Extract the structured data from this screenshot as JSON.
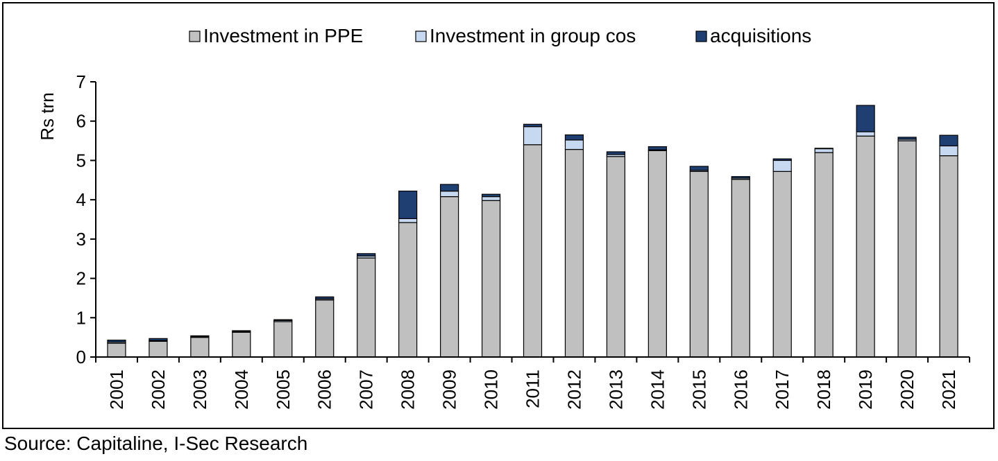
{
  "source_note": "Source: Capitaline, I-Sec Research",
  "colors": {
    "ppe": "#c0c0c0",
    "group": "#c6d9f0",
    "acq": "#1f3f73",
    "stroke": "#000000"
  },
  "chart_data": {
    "type": "bar",
    "stacked": true,
    "ylabel": "Rs trn",
    "xlabel": "",
    "ylim": [
      0,
      7
    ],
    "yticks": [
      0,
      1,
      2,
      3,
      4,
      5,
      6,
      7
    ],
    "legend_position": "top",
    "grid": false,
    "categories": [
      "2001",
      "2002",
      "2003",
      "2004",
      "2005",
      "2006",
      "2007",
      "2008",
      "2009",
      "2010",
      "2011",
      "2012",
      "2013",
      "2014",
      "2015",
      "2016",
      "2017",
      "2018",
      "2019",
      "2020",
      "2021"
    ],
    "series": [
      {
        "name": "Investment in PPE",
        "color_key": "ppe",
        "values": [
          0.35,
          0.4,
          0.5,
          0.63,
          0.9,
          1.45,
          2.52,
          3.42,
          4.08,
          3.98,
          5.4,
          5.28,
          5.1,
          5.25,
          4.72,
          4.52,
          4.72,
          5.2,
          5.62,
          5.5,
          5.12
        ]
      },
      {
        "name": "Investment in group cos",
        "color_key": "group",
        "values": [
          0.03,
          0.02,
          0.02,
          0.02,
          0.03,
          0.03,
          0.05,
          0.1,
          0.14,
          0.1,
          0.46,
          0.24,
          0.05,
          0.02,
          0.03,
          0.03,
          0.28,
          0.1,
          0.11,
          0.04,
          0.25
        ]
      },
      {
        "name": "acquisitions",
        "color_key": "acq",
        "values": [
          0.05,
          0.05,
          0.02,
          0.02,
          0.02,
          0.05,
          0.06,
          0.7,
          0.17,
          0.06,
          0.06,
          0.13,
          0.07,
          0.08,
          0.1,
          0.04,
          0.04,
          0.01,
          0.67,
          0.05,
          0.27
        ]
      }
    ]
  }
}
